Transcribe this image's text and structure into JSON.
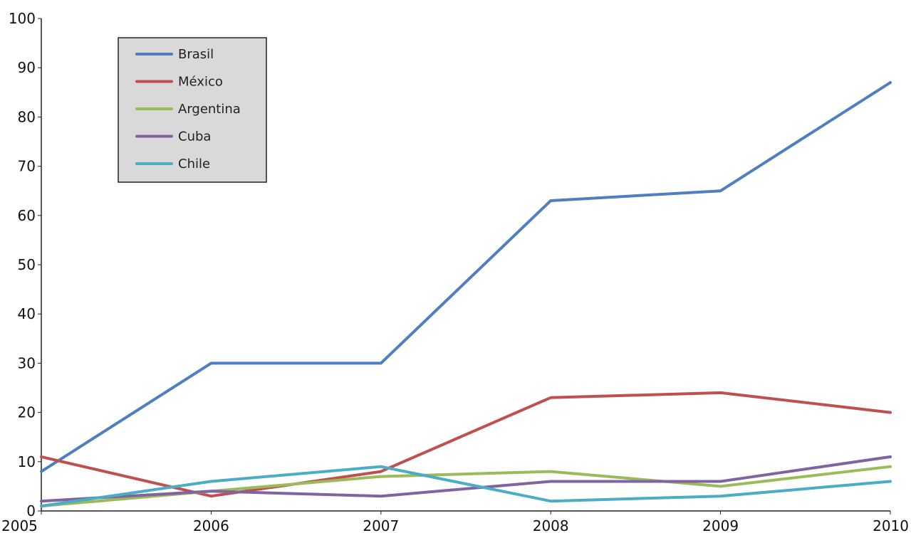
{
  "chart_data": {
    "type": "line",
    "title": "",
    "xlabel": "",
    "ylabel": "",
    "x": [
      2005,
      2006,
      2007,
      2008,
      2009,
      2010
    ],
    "x_tick_labels": [
      "2005",
      "2006",
      "2007",
      "2008",
      "2009",
      "2010"
    ],
    "ylim": [
      0,
      100
    ],
    "y_ticks": [
      0,
      10,
      20,
      30,
      40,
      50,
      60,
      70,
      80,
      90,
      100
    ],
    "y_tick_labels": [
      "0",
      "10",
      "20",
      "30",
      "40",
      "50",
      "60",
      "70",
      "80",
      "90",
      "100"
    ],
    "grid": false,
    "legend_position": "top-left",
    "series": [
      {
        "name": "Brasil",
        "color": "#4f7fbf",
        "values": [
          8,
          30,
          30,
          63,
          65,
          87
        ]
      },
      {
        "name": "México",
        "color": "#c0504d",
        "values": [
          11,
          3,
          8,
          23,
          24,
          20
        ]
      },
      {
        "name": "Argentina",
        "color": "#9bbb59",
        "values": [
          1,
          4,
          7,
          8,
          5,
          9
        ]
      },
      {
        "name": "Cuba",
        "color": "#8064a2",
        "values": [
          2,
          4,
          3,
          6,
          6,
          11
        ]
      },
      {
        "name": "Chile",
        "color": "#4bacc6",
        "values": [
          1,
          6,
          9,
          2,
          3,
          6
        ]
      }
    ]
  }
}
